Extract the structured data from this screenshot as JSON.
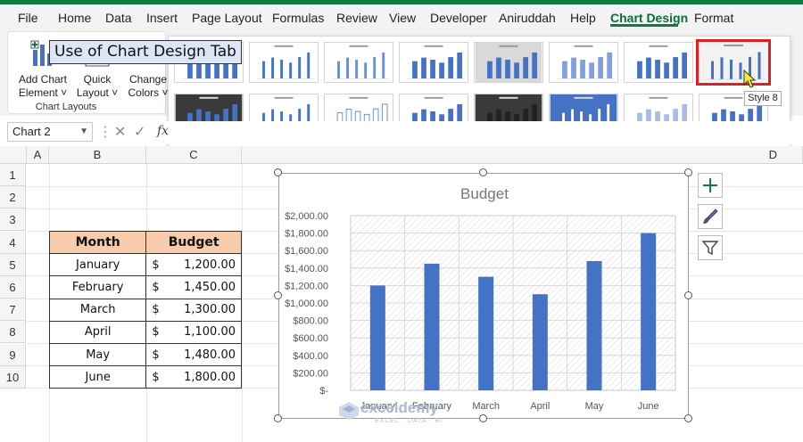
{
  "ribbon_tabs": [
    "File",
    "Home",
    "Data",
    "Insert",
    "Page Layout",
    "Formulas",
    "Review",
    "View",
    "Developer",
    "Aniruddah",
    "Help",
    "Chart Design",
    "Format"
  ],
  "active_tab": "Chart Design",
  "ribbon": {
    "add_chart_element": [
      "Add Chart",
      "Element ˅"
    ],
    "quick_layout": [
      "Quick",
      "Layout ˅"
    ],
    "change_colors": [
      "Change",
      "Colors ˅"
    ],
    "group_label": "Chart Layouts"
  },
  "tooltip": "Style 8",
  "namebox": "Chart 2",
  "formula_fx": "fx",
  "columns": [
    "A",
    "B",
    "C",
    "D"
  ],
  "rows": [
    "1",
    "2",
    "3",
    "4",
    "5",
    "6",
    "7",
    "8",
    "9",
    "10"
  ],
  "title_cell": "Use of Chart Design Tab",
  "table": {
    "headers": [
      "Month",
      "Budget"
    ],
    "rows": [
      {
        "month": "January",
        "currency": "$",
        "value": "1,200.00"
      },
      {
        "month": "February",
        "currency": "$",
        "value": "1,450.00"
      },
      {
        "month": "March",
        "currency": "$",
        "value": "1,300.00"
      },
      {
        "month": "April",
        "currency": "$",
        "value": "1,100.00"
      },
      {
        "month": "May",
        "currency": "$",
        "value": "1,480.00"
      },
      {
        "month": "June",
        "currency": "$",
        "value": "1,800.00"
      }
    ]
  },
  "watermark": {
    "name": "exceldemy",
    "tagline": "EXCEL · DATA · BI"
  },
  "colors": {
    "accent": "#107c41",
    "bar": "#4472c4",
    "highlight": "#e02020",
    "header_fill": "#f8cbad",
    "title_fill": "#dce6f4"
  },
  "chart_data": {
    "type": "bar",
    "title": "Budget",
    "categories": [
      "January",
      "February",
      "March",
      "April",
      "May",
      "June"
    ],
    "values": [
      1200,
      1450,
      1300,
      1100,
      1480,
      1800
    ],
    "ylim": [
      0,
      2000
    ],
    "yticks": [
      "$-",
      "$200.00",
      "$400.00",
      "$600.00",
      "$800.00",
      "$1,000.00",
      "$1,200.00",
      "$1,400.00",
      "$1,600.00",
      "$1,800.00",
      "$2,000.00"
    ],
    "grid": true,
    "legend": "none"
  }
}
